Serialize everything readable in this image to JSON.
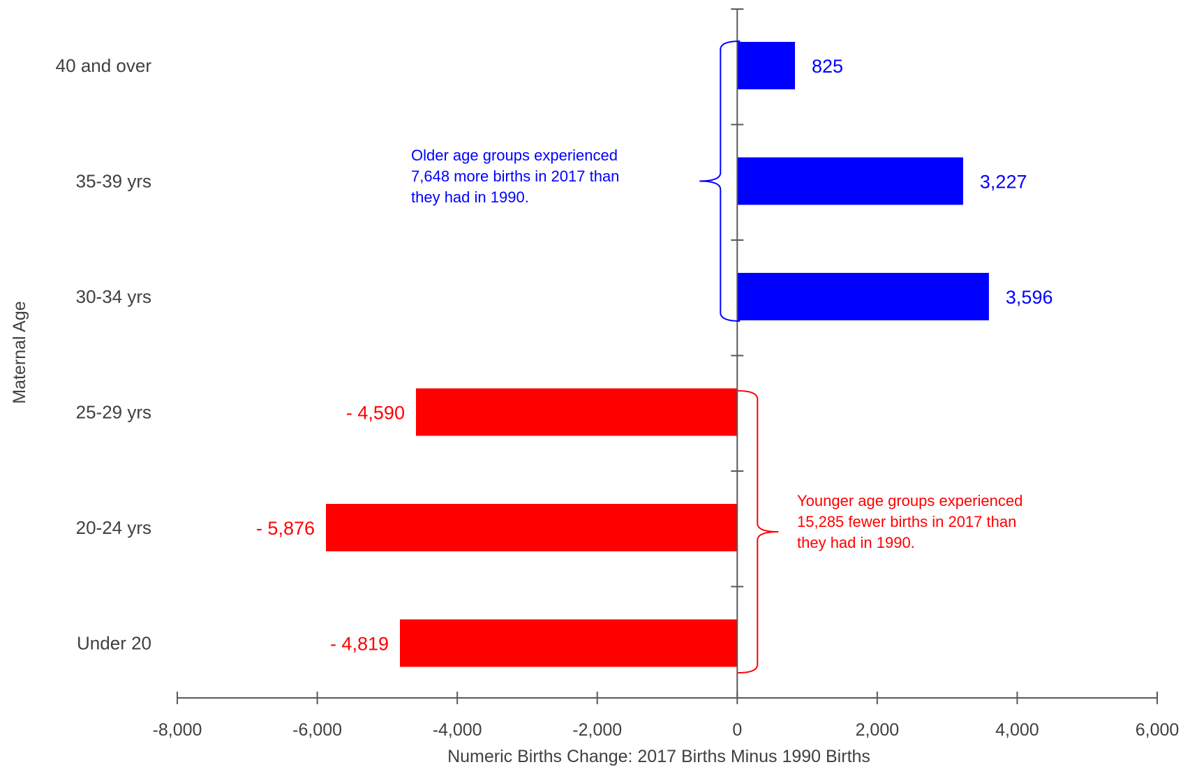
{
  "chart_data": {
    "type": "bar",
    "orientation": "horizontal",
    "xlabel": "Numeric Births Change: 2017 Births Minus 1990 Births",
    "ylabel": "Maternal Age",
    "xlim": [
      -8000,
      6000
    ],
    "xticks": [
      -8000,
      -6000,
      -4000,
      -2000,
      0,
      2000,
      4000,
      6000
    ],
    "xtick_labels": [
      "-8,000",
      "-6,000",
      "-4,000",
      "-2,000",
      "0",
      "2,000",
      "4,000",
      "6,000"
    ],
    "categories": [
      "40 and over",
      "35-39 yrs",
      "30-34 yrs",
      "25-29 yrs",
      "20-24 yrs",
      "Under 20"
    ],
    "values": [
      825,
      3227,
      3596,
      -4590,
      -5876,
      -4819
    ],
    "value_labels": [
      "825",
      "3,227",
      "3,596",
      "- 4,590",
      "- 5,876",
      "- 4,819"
    ],
    "colors": {
      "positive": "#0000FF",
      "negative": "#FF0000",
      "axis": "#595959"
    },
    "grid": false,
    "annotations": [
      {
        "group": "positive",
        "lines": [
          "Older age groups experienced",
          "7,648 more births in 2017 than",
          "they had in 1990."
        ],
        "color": "#0000FF"
      },
      {
        "group": "negative",
        "lines": [
          "Younger age groups experienced",
          "15,285 fewer births in 2017 than",
          "they had in 1990."
        ],
        "color": "#FF0000"
      }
    ]
  }
}
